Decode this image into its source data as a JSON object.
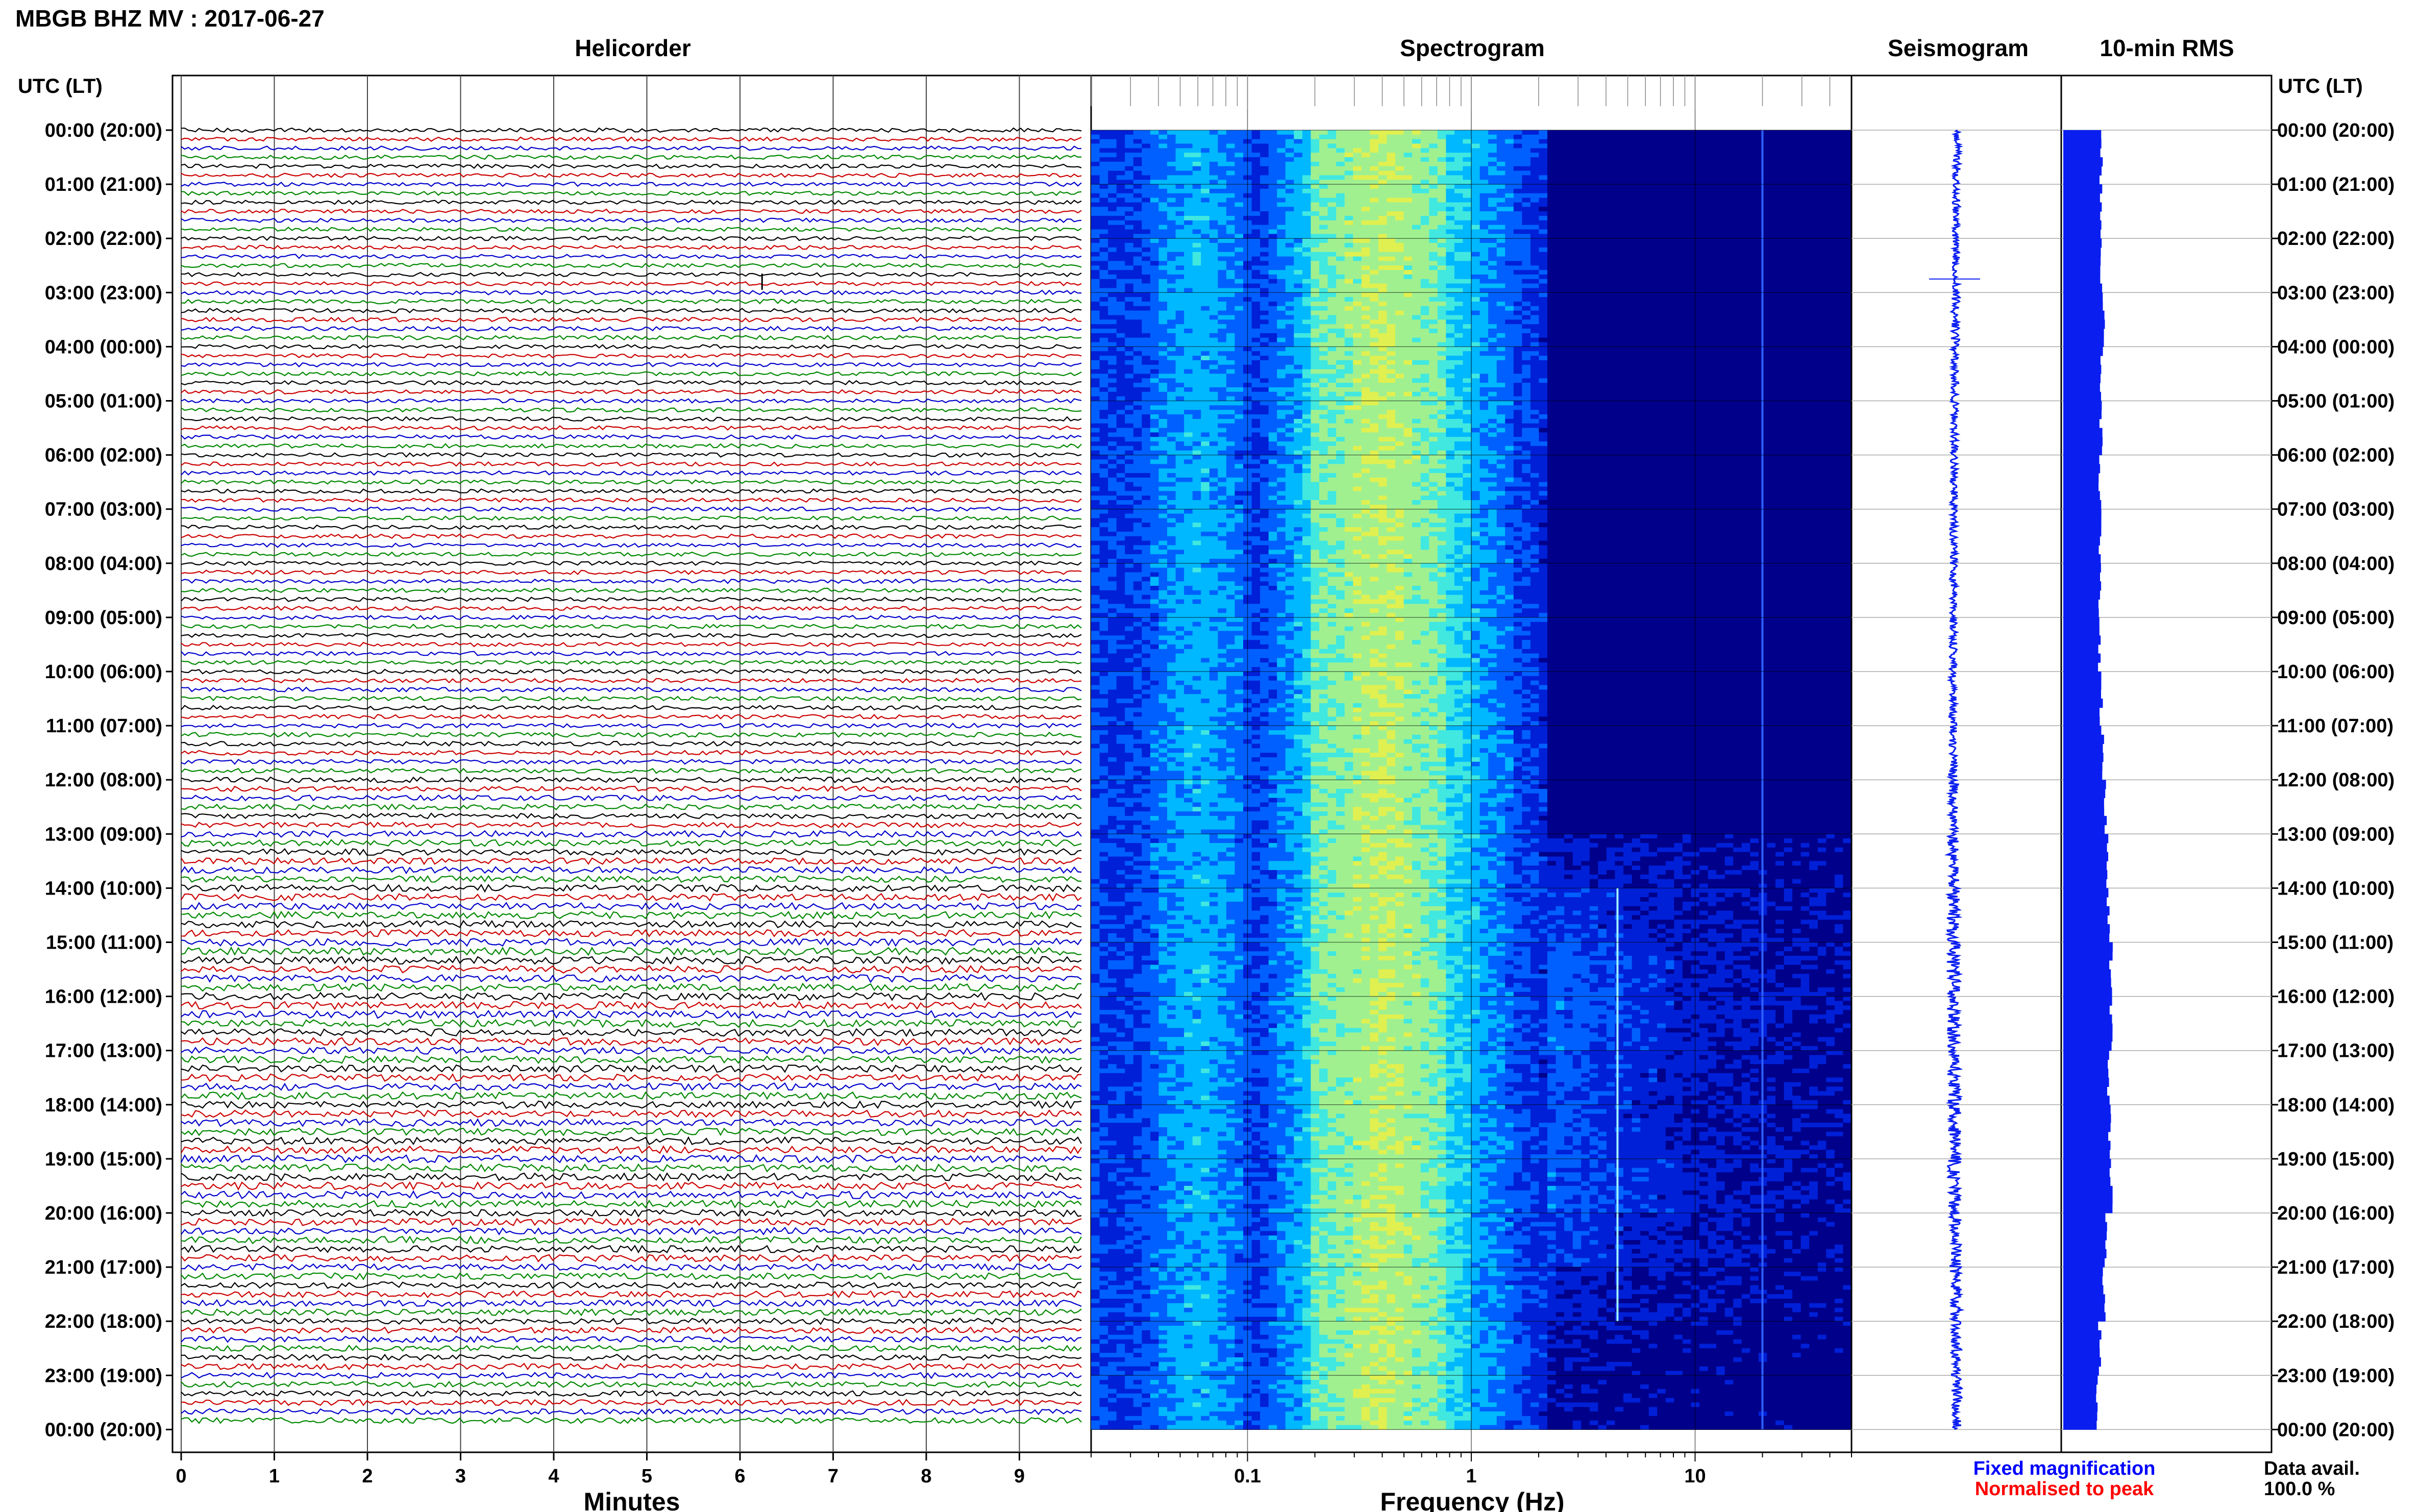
{
  "header": {
    "title": "MBGB BHZ MV : 2017-06-27",
    "utc_label": "UTC (LT)"
  },
  "panels": {
    "helicorder": "Helicorder",
    "spectrogram": "Spectrogram",
    "seismogram": "Seismogram",
    "rms": "10-min RMS"
  },
  "footer": {
    "fixed_magnification": "Fixed magnification",
    "normalised_to_peak": "Normalised to peak",
    "data_avail_label": "Data avail.",
    "data_avail_value": "100.0 %"
  },
  "colors": {
    "trace_cycle": [
      "#000000",
      "#cc0000",
      "#0000cc",
      "#008800"
    ],
    "fixed_magnification": "#0000ff",
    "normalised_to_peak": "#ff0000",
    "spectrogram_background": "#00008b",
    "rms_bar": "#0a1ef0",
    "seismogram_trace": "#0a1ef0"
  },
  "chart_data": [
    {
      "type": "line",
      "name": "helicorder",
      "xlabel": "Minutes",
      "x_ticks": [
        "0",
        "1",
        "2",
        "3",
        "4",
        "5",
        "6",
        "7",
        "8",
        "9"
      ],
      "xlim": [
        0,
        10
      ],
      "rows_per_hour": 6,
      "hour_labels": [
        "00:00 (20:00)",
        "01:00 (21:00)",
        "02:00 (22:00)",
        "03:00 (23:00)",
        "04:00 (00:00)",
        "05:00 (01:00)",
        "06:00 (02:00)",
        "07:00 (03:00)",
        "08:00 (04:00)",
        "09:00 (05:00)",
        "10:00 (06:00)",
        "11:00 (07:00)",
        "12:00 (08:00)",
        "13:00 (09:00)",
        "14:00 (10:00)",
        "15:00 (11:00)",
        "16:00 (12:00)",
        "17:00 (13:00)",
        "18:00 (14:00)",
        "19:00 (15:00)",
        "20:00 (16:00)",
        "21:00 (17:00)",
        "22:00 (18:00)",
        "23:00 (19:00)",
        "00:00 (20:00)"
      ],
      "hourly_noise_level": [
        0.35,
        0.35,
        0.35,
        0.4,
        0.35,
        0.35,
        0.35,
        0.35,
        0.35,
        0.35,
        0.4,
        0.45,
        0.6,
        0.8,
        0.9,
        1.0,
        1.0,
        0.95,
        0.95,
        1.0,
        0.9,
        0.8,
        0.7,
        0.65
      ]
    },
    {
      "type": "heatmap",
      "name": "spectrogram",
      "xlabel": "Frequency (Hz)",
      "x_scale": "log",
      "xlim": [
        0.02,
        50
      ],
      "x_tick_labels": [
        "0.1",
        "1",
        "10"
      ],
      "peak_band_hz": [
        0.2,
        0.8
      ],
      "colormap": [
        "#00008b",
        "#0020d8",
        "#0060ff",
        "#00b8ff",
        "#40e8e0",
        "#a0f090",
        "#e0f050"
      ]
    },
    {
      "type": "line",
      "name": "seismogram",
      "hourly_amplitude": [
        1.0,
        1.0,
        1.0,
        1.2,
        1.0,
        1.0,
        1.0,
        1.0,
        1.0,
        1.0,
        1.1,
        1.2,
        1.6,
        1.9,
        2.1,
        2.3,
        2.3,
        2.2,
        2.2,
        2.4,
        2.1,
        1.9,
        1.7,
        1.6
      ],
      "event_hours": [
        2.75
      ]
    },
    {
      "type": "bar",
      "name": "rms",
      "hourly_rms": [
        2.7,
        2.7,
        2.7,
        2.9,
        2.7,
        2.7,
        2.6,
        2.6,
        2.6,
        2.6,
        2.7,
        2.8,
        3.0,
        3.1,
        3.2,
        3.4,
        3.4,
        3.2,
        3.3,
        3.4,
        3.0,
        2.9,
        2.6,
        2.4
      ]
    }
  ]
}
